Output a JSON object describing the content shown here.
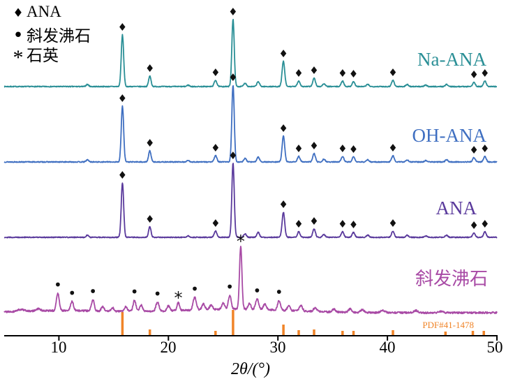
{
  "legend": {
    "items": [
      {
        "glyph": "♦",
        "label": "ANA"
      },
      {
        "glyph": "•",
        "label": "斜发沸石"
      },
      {
        "glyph": "*",
        "label": "石英"
      }
    ]
  },
  "axis": {
    "title": "2θ/(°)",
    "ticks": [
      "10",
      "20",
      "30",
      "40",
      "50"
    ],
    "tick_values": [
      10,
      20,
      30,
      40,
      50
    ],
    "range": [
      5,
      50
    ]
  },
  "reference": {
    "label": "PDF#41-1478",
    "color": "#f08428",
    "bars": [
      [
        15.8,
        33
      ],
      [
        18.3,
        8
      ],
      [
        24.3,
        6
      ],
      [
        25.9,
        36
      ],
      [
        30.5,
        15
      ],
      [
        31.9,
        7
      ],
      [
        33.3,
        8
      ],
      [
        35.9,
        6
      ],
      [
        36.9,
        6
      ],
      [
        40.5,
        7
      ],
      [
        45.3,
        5
      ],
      [
        47.8,
        6
      ],
      [
        48.8,
        6
      ]
    ]
  },
  "chart_data": {
    "type": "line",
    "xlabel": "2θ/(°)",
    "x_range": [
      5,
      50
    ],
    "x_ticks": [
      10,
      20,
      30,
      40,
      50
    ],
    "note": "Stacked XRD patterns; peaks = [two_theta_deg, rel_intensity_px, sigma_deg]; marks = phase symbols above peaks",
    "series": [
      {
        "id": "na-ana",
        "name": "Na-ANA",
        "color": "#2a8f96",
        "peaks": [
          [
            12.6,
            3,
            0.12
          ],
          [
            15.8,
            74,
            0.11
          ],
          [
            18.3,
            15,
            0.11
          ],
          [
            21.8,
            2,
            0.12
          ],
          [
            24.3,
            9,
            0.12
          ],
          [
            25.9,
            96,
            0.11
          ],
          [
            27.0,
            5,
            0.12
          ],
          [
            28.2,
            7,
            0.12
          ],
          [
            30.5,
            36,
            0.12
          ],
          [
            31.9,
            8,
            0.12
          ],
          [
            33.3,
            12,
            0.12
          ],
          [
            34.2,
            4,
            0.12
          ],
          [
            35.9,
            8,
            0.12
          ],
          [
            36.9,
            7,
            0.12
          ],
          [
            38.2,
            3,
            0.12
          ],
          [
            40.5,
            9,
            0.12
          ],
          [
            41.8,
            3,
            0.12
          ],
          [
            43.5,
            2,
            0.12
          ],
          [
            45.4,
            3,
            0.12
          ],
          [
            47.9,
            6,
            0.12
          ],
          [
            48.9,
            8,
            0.12
          ]
        ],
        "marks": [
          {
            "x": 15.8,
            "g": "♦"
          },
          {
            "x": 18.3,
            "g": "♦"
          },
          {
            "x": 24.3,
            "g": "♦"
          },
          {
            "x": 25.9,
            "g": "♦"
          },
          {
            "x": 30.5,
            "g": "♦"
          },
          {
            "x": 31.9,
            "g": "♦"
          },
          {
            "x": 33.3,
            "g": "♦"
          },
          {
            "x": 35.9,
            "g": "♦"
          },
          {
            "x": 36.9,
            "g": "♦"
          },
          {
            "x": 40.5,
            "g": "♦"
          },
          {
            "x": 47.9,
            "g": "♦"
          },
          {
            "x": 48.9,
            "g": "♦"
          }
        ]
      },
      {
        "id": "oh-ana",
        "name": "OH-ANA",
        "color": "#3f6fc1",
        "peaks": [
          [
            12.6,
            3,
            0.12
          ],
          [
            15.8,
            80,
            0.11
          ],
          [
            18.3,
            16,
            0.11
          ],
          [
            21.8,
            2,
            0.12
          ],
          [
            24.3,
            9,
            0.12
          ],
          [
            25.9,
            110,
            0.11
          ],
          [
            27.0,
            5,
            0.12
          ],
          [
            28.2,
            7,
            0.12
          ],
          [
            30.5,
            37,
            0.12
          ],
          [
            31.9,
            8,
            0.12
          ],
          [
            33.3,
            12,
            0.12
          ],
          [
            34.2,
            4,
            0.12
          ],
          [
            35.9,
            8,
            0.12
          ],
          [
            36.9,
            7,
            0.12
          ],
          [
            38.2,
            3,
            0.12
          ],
          [
            40.5,
            9,
            0.12
          ],
          [
            41.8,
            3,
            0.12
          ],
          [
            43.5,
            2,
            0.12
          ],
          [
            45.4,
            3,
            0.12
          ],
          [
            47.9,
            6,
            0.12
          ],
          [
            48.9,
            8,
            0.12
          ]
        ],
        "marks": [
          {
            "x": 15.8,
            "g": "♦"
          },
          {
            "x": 18.3,
            "g": "♦"
          },
          {
            "x": 24.3,
            "g": "♦"
          },
          {
            "x": 25.9,
            "g": "♦"
          },
          {
            "x": 30.5,
            "g": "♦"
          },
          {
            "x": 31.9,
            "g": "♦"
          },
          {
            "x": 33.3,
            "g": "♦"
          },
          {
            "x": 35.9,
            "g": "♦"
          },
          {
            "x": 36.9,
            "g": "♦"
          },
          {
            "x": 40.5,
            "g": "♦"
          },
          {
            "x": 47.9,
            "g": "♦"
          },
          {
            "x": 48.9,
            "g": "♦"
          }
        ]
      },
      {
        "id": "ana",
        "name": "ANA",
        "color": "#5a3a9c",
        "peaks": [
          [
            12.6,
            3,
            0.12
          ],
          [
            15.8,
            78,
            0.11
          ],
          [
            18.3,
            15,
            0.11
          ],
          [
            21.8,
            2,
            0.12
          ],
          [
            24.3,
            9,
            0.12
          ],
          [
            25.9,
            106,
            0.11
          ],
          [
            27.0,
            5,
            0.12
          ],
          [
            28.2,
            7,
            0.12
          ],
          [
            30.5,
            36,
            0.12
          ],
          [
            31.9,
            8,
            0.12
          ],
          [
            33.3,
            12,
            0.12
          ],
          [
            34.2,
            4,
            0.12
          ],
          [
            35.9,
            8,
            0.12
          ],
          [
            36.9,
            7,
            0.12
          ],
          [
            38.2,
            3,
            0.12
          ],
          [
            40.5,
            9,
            0.12
          ],
          [
            41.8,
            3,
            0.12
          ],
          [
            43.5,
            2,
            0.12
          ],
          [
            45.4,
            3,
            0.12
          ],
          [
            47.9,
            6,
            0.12
          ],
          [
            48.9,
            8,
            0.12
          ]
        ],
        "marks": [
          {
            "x": 15.8,
            "g": "♦"
          },
          {
            "x": 18.3,
            "g": "♦"
          },
          {
            "x": 24.3,
            "g": "♦"
          },
          {
            "x": 25.9,
            "g": "♦"
          },
          {
            "x": 30.5,
            "g": "♦"
          },
          {
            "x": 31.9,
            "g": "♦"
          },
          {
            "x": 33.3,
            "g": "♦"
          },
          {
            "x": 35.9,
            "g": "♦"
          },
          {
            "x": 36.9,
            "g": "♦"
          },
          {
            "x": 40.5,
            "g": "♦"
          },
          {
            "x": 47.9,
            "g": "♦"
          },
          {
            "x": 48.9,
            "g": "♦"
          }
        ]
      },
      {
        "id": "clinoptilolite",
        "name": "斜发沸石",
        "color": "#a84aa5",
        "peaks": [
          [
            6.5,
            3,
            0.3
          ],
          [
            8.1,
            3,
            0.2
          ],
          [
            9.9,
            25,
            0.13
          ],
          [
            11.2,
            13,
            0.13
          ],
          [
            13.1,
            16,
            0.13
          ],
          [
            14.0,
            6,
            0.13
          ],
          [
            14.9,
            5,
            0.13
          ],
          [
            16.1,
            7,
            0.13
          ],
          [
            16.9,
            16,
            0.13
          ],
          [
            17.5,
            9,
            0.13
          ],
          [
            19.0,
            13,
            0.14
          ],
          [
            20.0,
            7,
            0.13
          ],
          [
            20.9,
            11,
            0.12
          ],
          [
            22.4,
            18,
            0.15
          ],
          [
            23.2,
            8,
            0.14
          ],
          [
            23.9,
            6,
            0.14
          ],
          [
            25.0,
            9,
            0.13
          ],
          [
            25.6,
            20,
            0.13
          ],
          [
            26.6,
            90,
            0.11
          ],
          [
            27.4,
            8,
            0.13
          ],
          [
            28.1,
            15,
            0.14
          ],
          [
            28.8,
            8,
            0.14
          ],
          [
            30.1,
            14,
            0.13
          ],
          [
            31.0,
            8,
            0.13
          ],
          [
            32.1,
            8,
            0.14
          ],
          [
            33.4,
            5,
            0.15
          ],
          [
            35.1,
            4,
            0.15
          ],
          [
            36.6,
            5,
            0.15
          ],
          [
            37.7,
            4,
            0.15
          ],
          [
            39.6,
            3,
            0.2
          ],
          [
            42.6,
            3,
            0.2
          ],
          [
            44.9,
            2,
            0.2
          ],
          [
            10.5,
            3,
            4.0
          ],
          [
            26.0,
            5,
            5.0
          ]
        ],
        "marks": [
          {
            "x": 9.9,
            "g": "•"
          },
          {
            "x": 11.2,
            "g": "•"
          },
          {
            "x": 13.1,
            "g": "•"
          },
          {
            "x": 16.9,
            "g": "•"
          },
          {
            "x": 19.0,
            "g": "•"
          },
          {
            "x": 22.4,
            "g": "•"
          },
          {
            "x": 25.6,
            "g": "•"
          },
          {
            "x": 28.1,
            "g": "•"
          },
          {
            "x": 30.1,
            "g": "•"
          },
          {
            "x": 20.9,
            "g": "*"
          },
          {
            "x": 26.6,
            "g": "*"
          }
        ]
      }
    ]
  }
}
